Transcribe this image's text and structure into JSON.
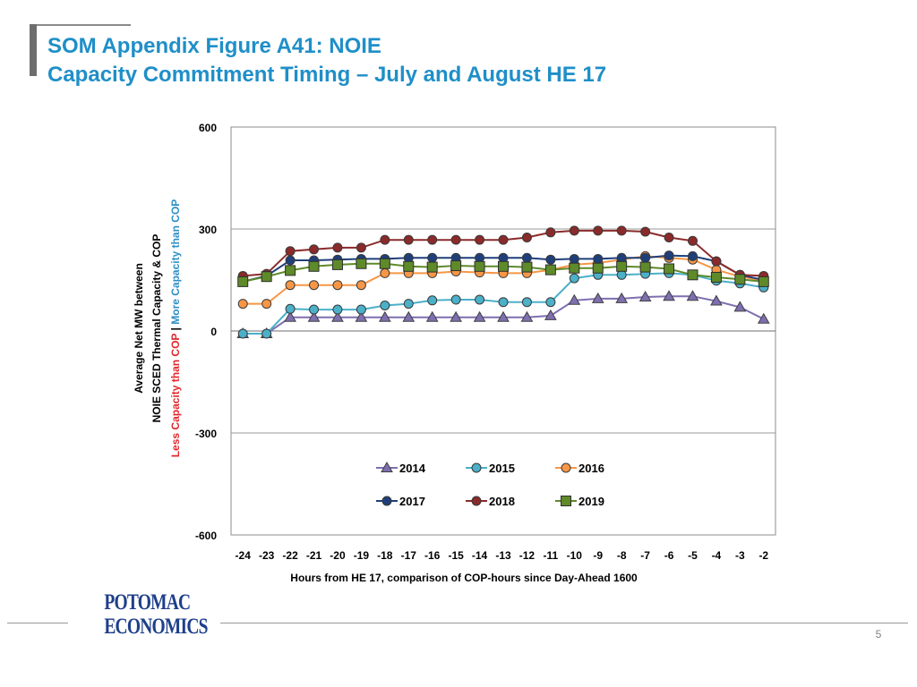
{
  "slide": {
    "title_line1": "SOM Appendix Figure A41:  NOIE",
    "title_line2": "Capacity Commitment Timing – July and August HE 17",
    "page_number": "5",
    "logo_line1": "POTOMAC",
    "logo_line2": "ECONOMICS",
    "title_color": "#1f8fc8"
  },
  "chart_data": {
    "type": "line",
    "title": "",
    "xlabel": "Hours from HE 17, comparison of COP-hours since Day-Ahead 1600",
    "ylabel_lines": [
      {
        "text": "Average Net MW between",
        "color": "#000000"
      },
      {
        "text": "NOIE SCED Thermal Capacity & COP",
        "color": "#000000"
      },
      {
        "parts": [
          {
            "text": "Less Capacity than COP",
            "color": "#e3262b"
          },
          {
            "text": " | ",
            "color": "#000000"
          },
          {
            "text": "More Capacity than COP",
            "color": "#2e8fc6"
          }
        ]
      }
    ],
    "categories": [
      "-24",
      "-23",
      "-22",
      "-21",
      "-20",
      "-19",
      "-18",
      "-17",
      "-16",
      "-15",
      "-14",
      "-13",
      "-12",
      "-11",
      "-10",
      "-9",
      "-8",
      "-7",
      "-6",
      "-5",
      "-4",
      "-3",
      "-2"
    ],
    "ylim": [
      -600,
      600
    ],
    "yticks": [
      "600",
      "300",
      "0",
      "-300",
      "-600"
    ],
    "grid": "horizontal",
    "legend_position": "bottom-inside",
    "series": [
      {
        "name": "2014",
        "color": "#7f6fb0",
        "marker": "triangle",
        "values": [
          -8,
          -8,
          40,
          40,
          40,
          40,
          40,
          40,
          40,
          40,
          40,
          40,
          40,
          45,
          90,
          95,
          95,
          100,
          102,
          102,
          88,
          70,
          35
        ]
      },
      {
        "name": "2015",
        "color": "#4bb0c8",
        "marker": "circle",
        "values": [
          -8,
          -8,
          65,
          63,
          63,
          63,
          75,
          80,
          90,
          92,
          92,
          85,
          85,
          85,
          155,
          165,
          165,
          168,
          170,
          165,
          148,
          140,
          128
        ]
      },
      {
        "name": "2016",
        "color": "#f79646",
        "marker": "circle",
        "values": [
          80,
          80,
          135,
          135,
          135,
          135,
          170,
          170,
          170,
          175,
          172,
          170,
          170,
          180,
          195,
          200,
          210,
          220,
          215,
          210,
          180,
          160,
          148
        ]
      },
      {
        "name": "2017",
        "color": "#1f3f7a",
        "marker": "circle",
        "values": [
          145,
          162,
          208,
          208,
          210,
          212,
          212,
          215,
          215,
          215,
          215,
          215,
          215,
          210,
          212,
          212,
          215,
          215,
          222,
          220,
          205,
          165,
          150
        ]
      },
      {
        "name": "2018",
        "color": "#8b2a2a",
        "marker": "circle",
        "values": [
          162,
          168,
          235,
          240,
          245,
          245,
          268,
          268,
          268,
          268,
          268,
          268,
          275,
          290,
          295,
          295,
          295,
          292,
          275,
          265,
          205,
          165,
          162
        ]
      },
      {
        "name": "2019",
        "color": "#5e8a2a",
        "marker": "square",
        "values": [
          145,
          160,
          178,
          190,
          195,
          198,
          198,
          190,
          188,
          192,
          190,
          190,
          188,
          180,
          185,
          185,
          190,
          188,
          183,
          165,
          158,
          152,
          145
        ]
      }
    ]
  }
}
